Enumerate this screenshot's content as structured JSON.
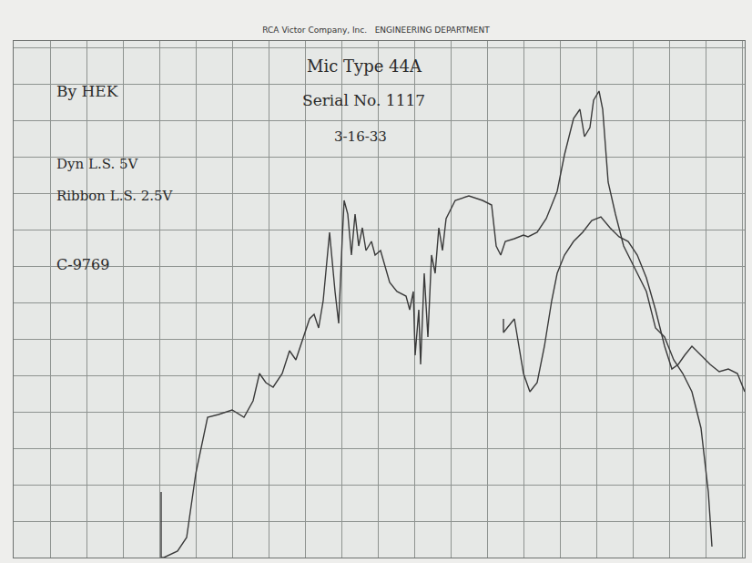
{
  "chart_data": {
    "type": "line",
    "title": "RCA Victor Company, Inc.   ENGINEERING DEPARTMENT",
    "tick_labels": false,
    "grid": true,
    "xlim": [
      0,
      803
    ],
    "ylim": [
      0,
      567
    ],
    "xticks": [
      0,
      40,
      80,
      120,
      160,
      200,
      240,
      280,
      320,
      360,
      400,
      440,
      480,
      520,
      560,
      600,
      640,
      680,
      720,
      760,
      800
    ],
    "yticks": [
      0,
      40,
      80,
      120,
      160,
      200,
      240,
      280,
      320,
      360,
      400,
      440,
      480,
      520,
      560
    ],
    "annotations": [
      "By HEK",
      "Dyn L.S. 5V",
      "Ribbon L.S. 2.5V",
      "C-9769",
      "Mic Type 44A",
      "Serial No. 1117",
      "3-16-33"
    ],
    "series": [
      {
        "color": "#3a3a3a",
        "x": [
          162,
          162,
          165,
          180,
          190,
          200,
          213,
          225,
          240,
          253,
          263,
          270,
          277,
          285,
          295,
          303,
          310,
          315,
          325,
          330,
          335,
          340,
          347,
          353,
          357,
          361,
          363,
          367,
          371,
          375,
          379,
          383,
          387,
          393,
          397,
          403,
          407,
          413,
          421,
          431,
          435,
          439,
          441,
          445,
          447,
          451,
          455,
          459,
          463,
          467,
          471,
          475,
          485,
          500,
          515,
          525,
          530,
          535,
          540,
          550,
          560,
          565,
          575,
          585,
          597,
          605,
          615,
          622,
          627,
          633,
          637,
          643,
          647,
          653,
          661,
          670,
          685,
          695,
          705,
          715,
          725,
          735,
          745,
          755,
          763,
          767
        ],
        "values": [
          72,
          0,
          0,
          7,
          22,
          92,
          154,
          157,
          162,
          154,
          172,
          202,
          192,
          187,
          202,
          227,
          217,
          232,
          262,
          267,
          252,
          282,
          357,
          292,
          257,
          352,
          392,
          377,
          332,
          377,
          342,
          362,
          337,
          347,
          332,
          337,
          322,
          302,
          292,
          287,
          272,
          292,
          222,
          272,
          212,
          312,
          242,
          332,
          312,
          362,
          337,
          372,
          392,
          397,
          392,
          387,
          342,
          332,
          347,
          350,
          354,
          352,
          357,
          372,
          402,
          442,
          482,
          492,
          462,
          472,
          502,
          512,
          492,
          412,
          377,
          342,
          312,
          292,
          252,
          242,
          217,
          202,
          182,
          142,
          72,
          12
        ]
      },
      {
        "color": "#3a3a3a",
        "x": [
          538,
          538,
          550,
          555,
          560,
          567,
          575,
          583,
          591,
          597,
          605,
          615,
          625,
          635,
          645,
          655,
          665,
          675,
          685,
          695,
          705,
          715,
          723,
          730,
          737,
          745,
          755,
          765,
          775,
          785,
          795,
          803
        ],
        "values": [
          262,
          247,
          262,
          232,
          202,
          182,
          192,
          232,
          282,
          312,
          332,
          347,
          357,
          370,
          374,
          362,
          352,
          347,
          332,
          307,
          272,
          232,
          207,
          212,
          222,
          232,
          222,
          212,
          204,
          207,
          202,
          182
        ]
      }
    ]
  }
}
